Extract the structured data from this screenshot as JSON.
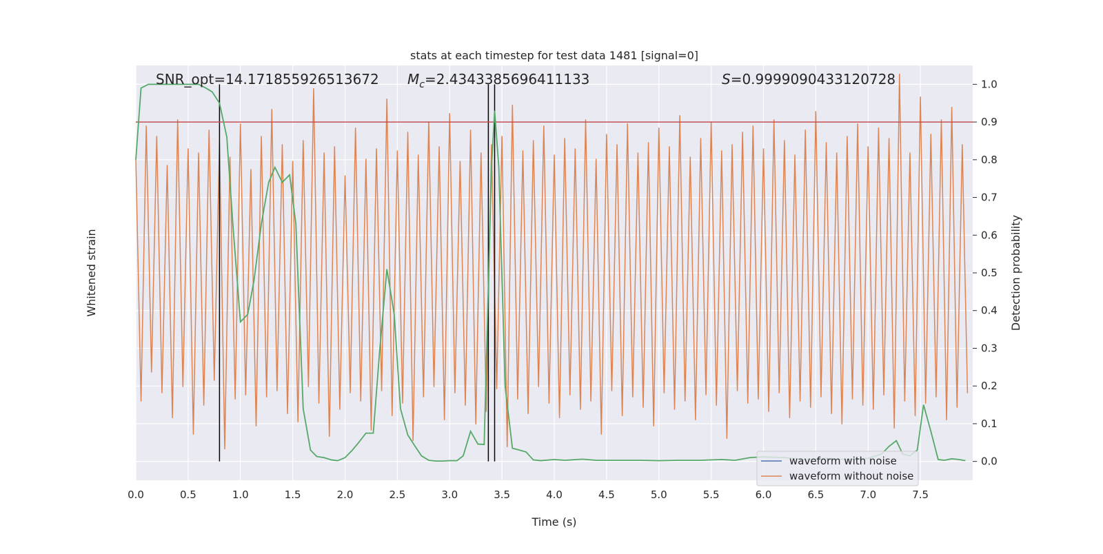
{
  "chart_data": {
    "type": "line",
    "title": "stats at each timestep for test data 1481 [signal=0]",
    "xlabel": "Time (s)",
    "ylabel": "Whitened strain",
    "y2label": "Detection probability",
    "xlim": [
      0,
      8
    ],
    "xticks": [
      {
        "value": 0,
        "label": "0.0"
      },
      {
        "value": 0.5,
        "label": "0.5"
      },
      {
        "value": 1,
        "label": "1.0"
      },
      {
        "value": 1.5,
        "label": "1.5"
      },
      {
        "value": 2,
        "label": "2.0"
      },
      {
        "value": 2.5,
        "label": "2.5"
      },
      {
        "value": 3,
        "label": "3.0"
      },
      {
        "value": 3.5,
        "label": "3.5"
      },
      {
        "value": 4,
        "label": "4.0"
      },
      {
        "value": 4.5,
        "label": "4.5"
      },
      {
        "value": 5,
        "label": "5.0"
      },
      {
        "value": 5.5,
        "label": "5.5"
      },
      {
        "value": 6,
        "label": "6.0"
      },
      {
        "value": 6.5,
        "label": "6.5"
      },
      {
        "value": 7,
        "label": "7.0"
      },
      {
        "value": 7.5,
        "label": "7.5"
      }
    ],
    "ylim": [
      -1,
      1
    ],
    "y2lim": [
      -0.05,
      1.05
    ],
    "y2ticks": [
      {
        "value": 0,
        "label": "0.0"
      },
      {
        "value": 0.1,
        "label": "0.1"
      },
      {
        "value": 0.2,
        "label": "0.2"
      },
      {
        "value": 0.3,
        "label": "0.3"
      },
      {
        "value": 0.4,
        "label": "0.4"
      },
      {
        "value": 0.5,
        "label": "0.5"
      },
      {
        "value": 0.6,
        "label": "0.6"
      },
      {
        "value": 0.7,
        "label": "0.7"
      },
      {
        "value": 0.8,
        "label": "0.8"
      },
      {
        "value": 0.9,
        "label": "0.9"
      },
      {
        "value": 1,
        "label": "1.0"
      }
    ],
    "grid": true,
    "legend": "lower right",
    "series": [
      {
        "name": "waveform with noise",
        "color": "#4c72b0"
      },
      {
        "name": "waveform without noise",
        "color": "#dd8452",
        "x": [
          0,
          0.05,
          0.1,
          0.15,
          0.2,
          0.25,
          0.3,
          0.35,
          0.4,
          0.45,
          0.5,
          0.55,
          0.6,
          0.65,
          0.7,
          0.75,
          0.8,
          0.85,
          0.9,
          0.95,
          1,
          1.05,
          1.1,
          1.15,
          1.2,
          1.25,
          1.3,
          1.35,
          1.4,
          1.45,
          1.5,
          1.55,
          1.6,
          1.65,
          1.7,
          1.75,
          1.8,
          1.85,
          1.9,
          1.95,
          2,
          2.05,
          2.1,
          2.15,
          2.2,
          2.25,
          2.3,
          2.35,
          2.4,
          2.45,
          2.5,
          2.55,
          2.6,
          2.65,
          2.7,
          2.75,
          2.8,
          2.85,
          2.9,
          2.95,
          3,
          3.05,
          3.1,
          3.15,
          3.2,
          3.25,
          3.3,
          3.35,
          3.4,
          3.45,
          3.5,
          3.55,
          3.6,
          3.65,
          3.7,
          3.75,
          3.8,
          3.85,
          3.9,
          3.95,
          4,
          4.05,
          4.1,
          4.15,
          4.2,
          4.25,
          4.3,
          4.35,
          4.4,
          4.45,
          4.5,
          4.55,
          4.6,
          4.65,
          4.7,
          4.75,
          4.8,
          4.85,
          4.9,
          4.95,
          5,
          5.05,
          5.1,
          5.15,
          5.2,
          5.25,
          5.3,
          5.35,
          5.4,
          5.45,
          5.5,
          5.55,
          5.6,
          5.65,
          5.7,
          5.75,
          5.8,
          5.85,
          5.9,
          5.95,
          6,
          6.05,
          6.1,
          6.15,
          6.2,
          6.25,
          6.3,
          6.35,
          6.4,
          6.45,
          6.5,
          6.55,
          6.6,
          6.65,
          6.7,
          6.75,
          6.8,
          6.85,
          6.9,
          6.95,
          7,
          7.05,
          7.1,
          7.15,
          7.2,
          7.25,
          7.3,
          7.35,
          7.4,
          7.45,
          7.5,
          7.55,
          7.6,
          7.65,
          7.7,
          7.75,
          7.8,
          7.85,
          7.9,
          7.95
        ],
        "values": [
          0.55,
          -0.62,
          0.71,
          -0.48,
          0.66,
          -0.58,
          0.52,
          -0.7,
          0.74,
          -0.55,
          0.6,
          -0.78,
          0.58,
          -0.64,
          0.69,
          -0.52,
          0.63,
          -0.85,
          0.56,
          -0.61,
          0.72,
          -0.59,
          0.5,
          -0.74,
          0.66,
          -0.6,
          0.79,
          -0.57,
          0.62,
          -0.68,
          0.54,
          -0.72,
          0.64,
          -0.55,
          0.89,
          -0.63,
          0.58,
          -0.79,
          0.61,
          -0.66,
          0.47,
          -0.58,
          0.7,
          -0.62,
          0.55,
          -0.76,
          0.6,
          -0.57,
          0.84,
          -0.69,
          0.59,
          -0.63,
          0.68,
          -0.81,
          0.57,
          -0.6,
          0.73,
          -0.55,
          0.61,
          -0.71,
          0.77,
          -0.58,
          0.54,
          -0.64,
          0.69,
          -0.73,
          0.58,
          -0.67,
          0.62,
          -0.56,
          0.66,
          -0.84,
          0.81,
          -0.61,
          0.59,
          -0.68,
          0.64,
          -0.55,
          0.71,
          -0.63,
          0.57,
          -0.7,
          0.65,
          -0.59,
          0.6,
          -0.66,
          0.74,
          -0.62,
          0.55,
          -0.78,
          0.67,
          -0.57,
          0.62,
          -0.69,
          0.72,
          -0.6,
          0.58,
          -0.65,
          0.63,
          -0.74,
          0.7,
          -0.58,
          0.61,
          -0.66,
          0.76,
          -0.62,
          0.56,
          -0.71,
          0.65,
          -0.59,
          0.73,
          -0.64,
          0.59,
          -0.8,
          0.62,
          -0.57,
          0.68,
          -0.63,
          0.71,
          -0.61,
          0.6,
          -0.67,
          0.74,
          -0.58,
          0.64,
          -0.7,
          0.57,
          -0.62,
          0.69,
          -0.65,
          0.78,
          -0.6,
          0.63,
          -0.68,
          0.58,
          -0.73,
          0.66,
          -0.61,
          0.72,
          -0.64,
          0.61,
          -0.66,
          0.7,
          -0.59,
          0.65,
          -0.75,
          0.96,
          -0.62,
          0.58,
          -0.69,
          0.85,
          -0.63,
          0.67,
          -0.6,
          0.74,
          -0.71,
          0.8,
          -0.65,
          0.62,
          -0.58
        ]
      }
    ],
    "probability": {
      "color": "#55a868",
      "axis": "y2",
      "x": [
        0,
        0.05,
        0.12,
        0.3,
        0.5,
        0.6,
        0.67,
        0.73,
        0.8,
        0.87,
        0.93,
        1,
        1.07,
        1.13,
        1.2,
        1.27,
        1.33,
        1.4,
        1.47,
        1.53,
        1.6,
        1.67,
        1.73,
        1.8,
        1.87,
        1.93,
        2,
        2.07,
        2.13,
        2.2,
        2.27,
        2.33,
        2.4,
        2.47,
        2.53,
        2.6,
        2.67,
        2.73,
        2.8,
        2.87,
        2.93,
        3,
        3.07,
        3.13,
        3.2,
        3.27,
        3.33,
        3.4,
        3.43,
        3.47,
        3.53,
        3.6,
        3.67,
        3.73,
        3.8,
        3.87,
        4,
        4.1,
        4.27,
        4.4,
        4.6,
        4.8,
        5,
        5.2,
        5.4,
        5.6,
        5.73,
        5.87,
        6,
        6.2,
        6.4,
        6.6,
        6.8,
        7,
        7.13,
        7.2,
        7.27,
        7.33,
        7.4,
        7.47,
        7.53,
        7.6,
        7.67,
        7.73,
        7.8,
        7.87,
        7.93
      ],
      "values": [
        0.8,
        0.99,
        1,
        1,
        1,
        1,
        0.99,
        0.98,
        0.95,
        0.86,
        0.62,
        0.37,
        0.39,
        0.48,
        0.63,
        0.74,
        0.78,
        0.74,
        0.76,
        0.63,
        0.14,
        0.03,
        0.013,
        0.01,
        0.004,
        0.002,
        0.01,
        0.03,
        0.05,
        0.075,
        0.075,
        0.29,
        0.51,
        0.39,
        0.14,
        0.07,
        0.04,
        0.015,
        0.003,
        0.001,
        0.001,
        0.002,
        0.002,
        0.015,
        0.08,
        0.046,
        0.045,
        0.78,
        0.93,
        0.78,
        0.2,
        0.035,
        0.03,
        0.025,
        0.004,
        0.002,
        0.005,
        0.003,
        0.006,
        0.003,
        0.003,
        0.003,
        0.002,
        0.003,
        0.003,
        0.005,
        0.003,
        0.01,
        0.012,
        0.01,
        0.005,
        0.008,
        0.005,
        0.008,
        0.02,
        0.04,
        0.055,
        0.02,
        0.015,
        0.03,
        0.15,
        0.08,
        0.005,
        0.003,
        0.007,
        0.005,
        0.002
      ]
    },
    "hlines": [
      {
        "y": 0.9,
        "axis": "y2",
        "color": "#c44e52"
      }
    ],
    "vlines": {
      "x": [
        0.8,
        3.37,
        3.43
      ],
      "ymin": 0,
      "ymax": 1,
      "axis": "y2",
      "color": "#000000"
    },
    "annotations": {
      "snr": "SNR_opt=14.171855926513672",
      "mc": {
        "symbol": "M",
        "subscript": "c",
        "text": "=2.4343385696411133"
      },
      "s": {
        "symbol": "S",
        "text": "=0.9999090433120728"
      }
    }
  }
}
